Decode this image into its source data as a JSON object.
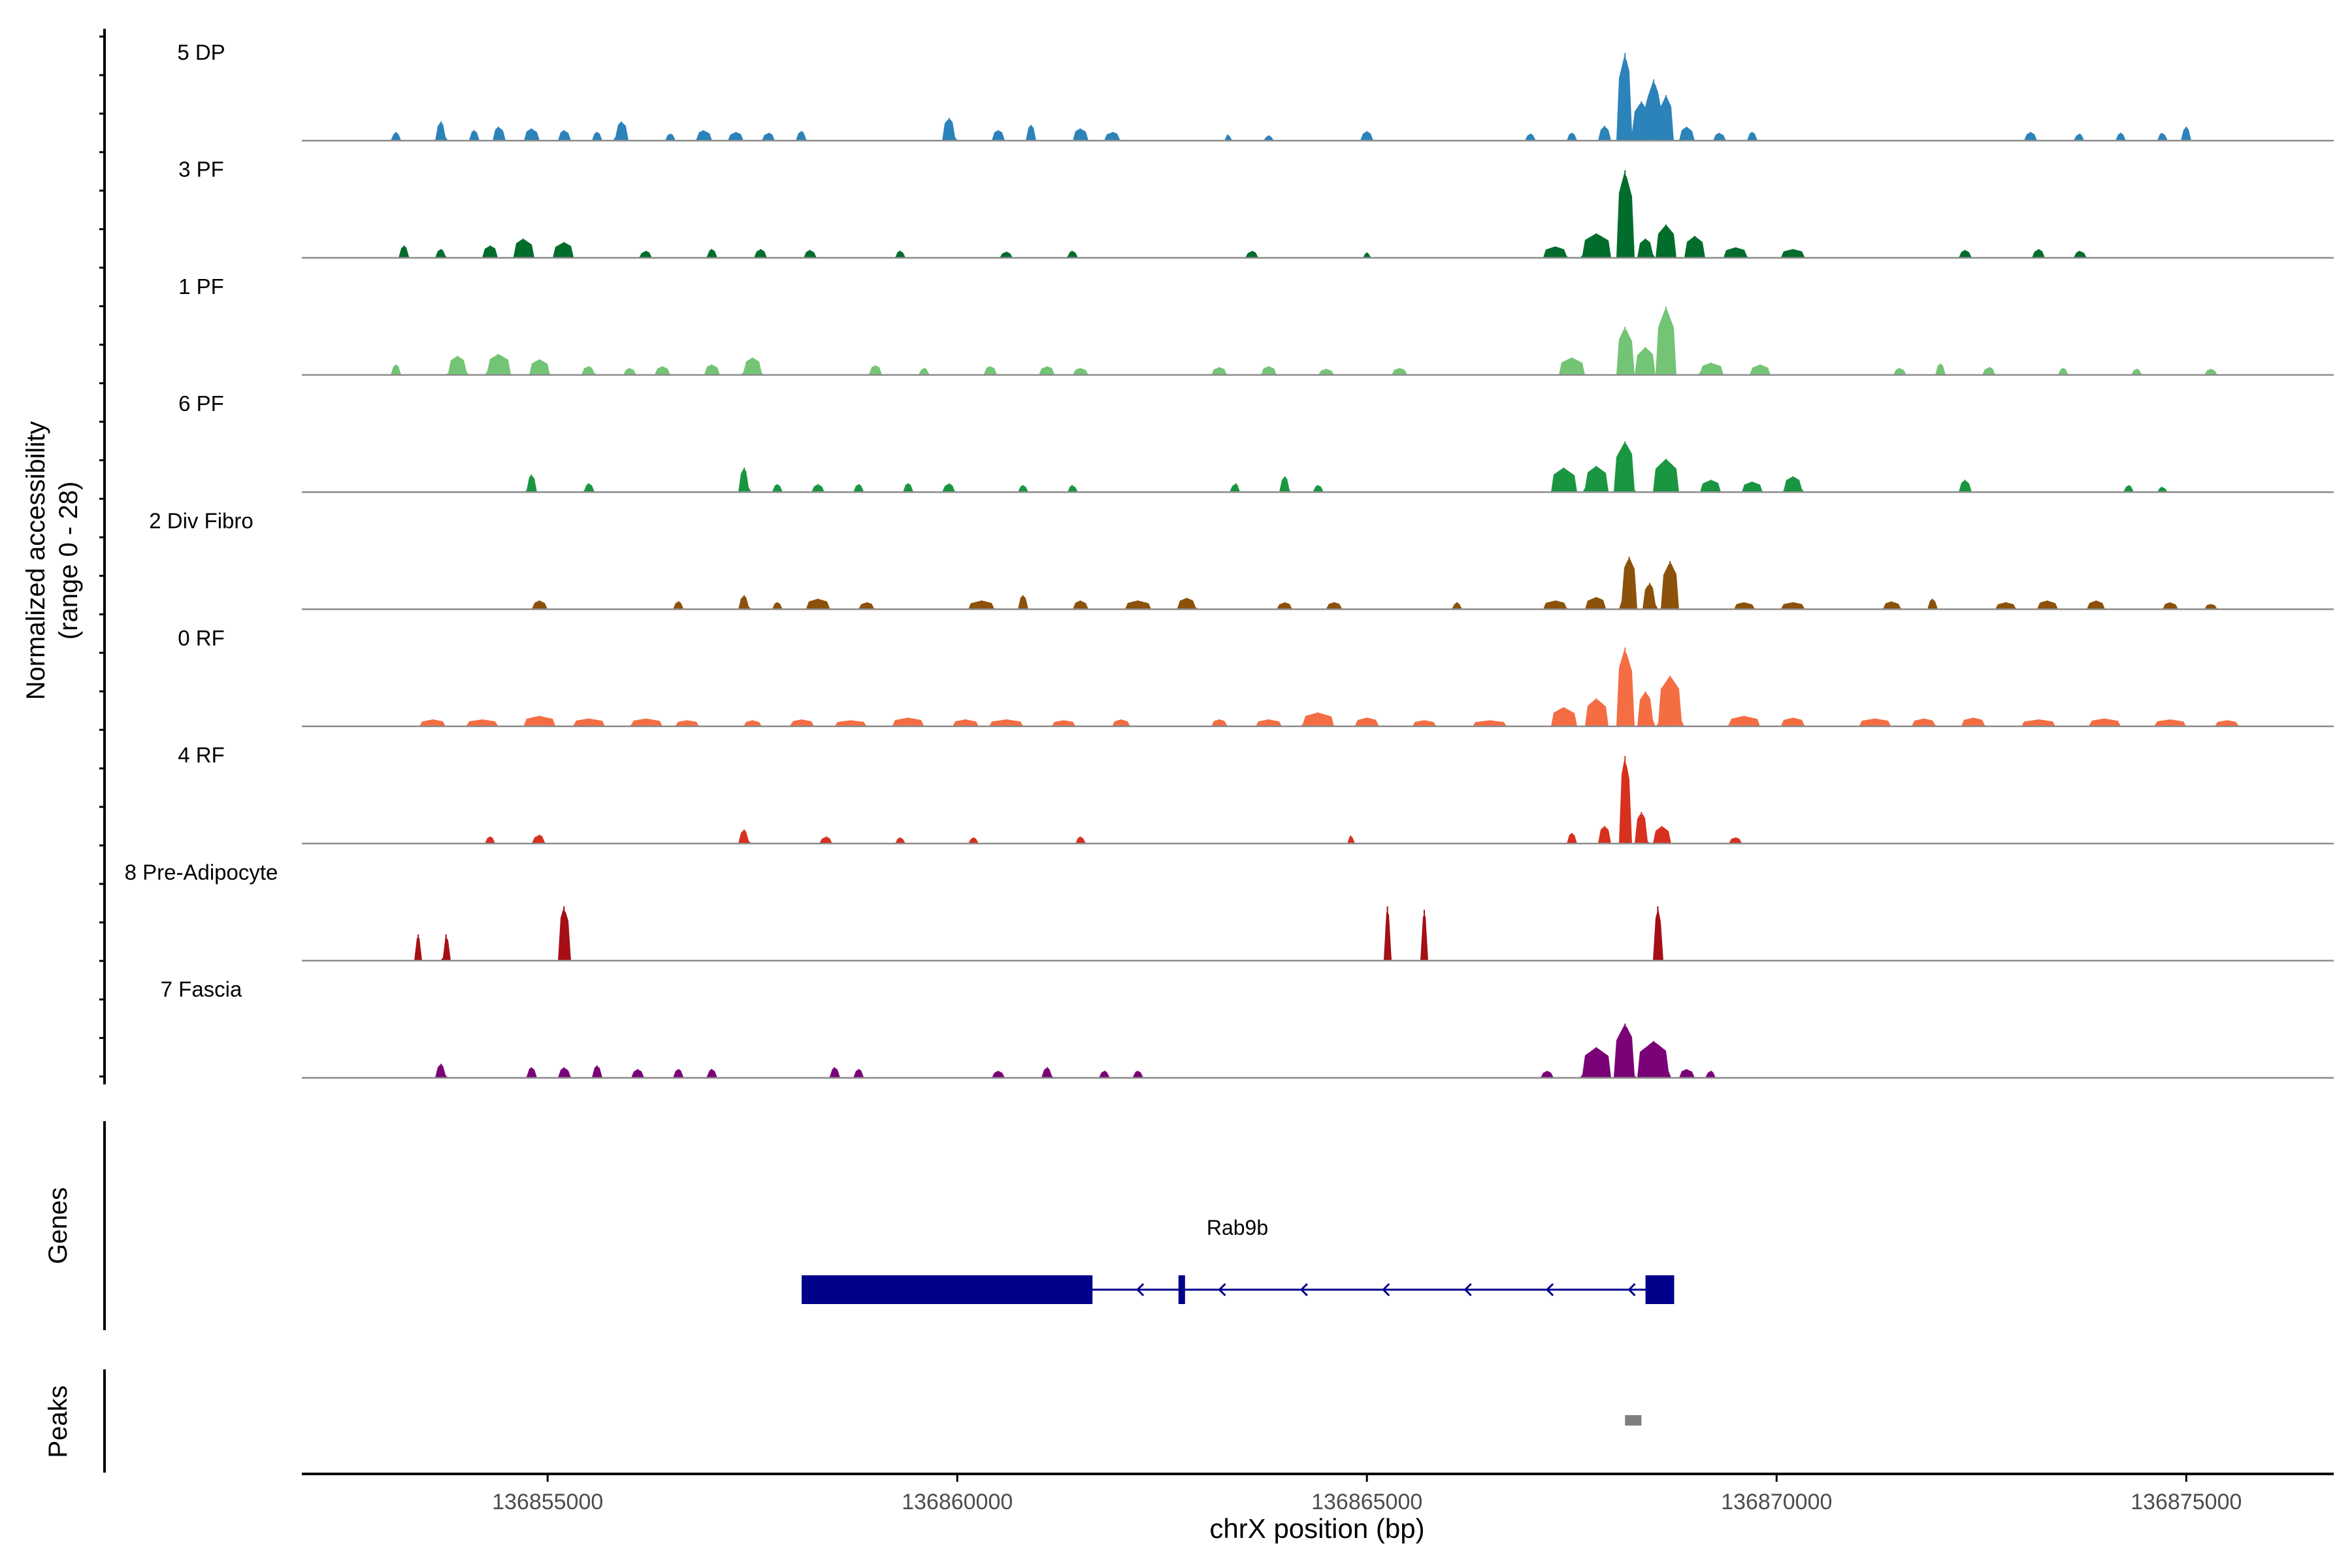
{
  "chart_data": {
    "type": "area",
    "title": "",
    "ylabel": "Normalized accessibility\n(range 0 - 28)",
    "ylabel_lines": [
      "Normalized accessibility",
      "(range 0 - 28)"
    ],
    "yrange": [
      0,
      28
    ],
    "xlabel": "chrX position (bp)",
    "xlim": [
      136852000,
      136876800
    ],
    "xticks": [
      136855000,
      136860000,
      136865000,
      136870000,
      136875000
    ],
    "xtick_labels": [
      "136855000",
      "136860000",
      "136865000",
      "136870000",
      "136875000"
    ],
    "tracks": [
      {
        "name": "5 DP",
        "color": "#2b83ba",
        "peaks": [
          [
            136853150,
            0.1,
            40
          ],
          [
            136853700,
            0.22,
            60
          ],
          [
            136854100,
            0.12,
            60
          ],
          [
            136854400,
            0.16,
            70
          ],
          [
            136854800,
            0.14,
            80
          ],
          [
            136855200,
            0.12,
            70
          ],
          [
            136855600,
            0.1,
            60
          ],
          [
            136855900,
            0.22,
            80
          ],
          [
            136856500,
            0.08,
            60
          ],
          [
            136856900,
            0.12,
            90
          ],
          [
            136857300,
            0.1,
            80
          ],
          [
            136857700,
            0.09,
            70
          ],
          [
            136858100,
            0.11,
            60
          ],
          [
            136859900,
            0.26,
            80
          ],
          [
            136860500,
            0.12,
            80
          ],
          [
            136860900,
            0.18,
            60
          ],
          [
            136861500,
            0.14,
            90
          ],
          [
            136861900,
            0.1,
            90
          ],
          [
            136863300,
            0.07,
            40
          ],
          [
            136863800,
            0.06,
            40
          ],
          [
            136865000,
            0.11,
            60
          ],
          [
            136867000,
            0.08,
            60
          ],
          [
            136867500,
            0.09,
            60
          ],
          [
            136867900,
            0.17,
            60
          ],
          [
            136868150,
            1.0,
            90
          ],
          [
            136868350,
            0.45,
            110
          ],
          [
            136868500,
            0.7,
            90
          ],
          [
            136868650,
            0.52,
            90
          ],
          [
            136868900,
            0.16,
            80
          ],
          [
            136869300,
            0.09,
            60
          ],
          [
            136869700,
            0.1,
            60
          ],
          [
            136873100,
            0.1,
            60
          ],
          [
            136873700,
            0.08,
            50
          ],
          [
            136874200,
            0.09,
            50
          ],
          [
            136874700,
            0.09,
            50
          ],
          [
            136875000,
            0.16,
            50
          ]
        ]
      },
      {
        "name": "3 PF",
        "color": "#006d2c",
        "peaks": [
          [
            136853250,
            0.14,
            60
          ],
          [
            136853700,
            0.1,
            60
          ],
          [
            136854300,
            0.14,
            90
          ],
          [
            136854700,
            0.22,
            120
          ],
          [
            136855200,
            0.18,
            120
          ],
          [
            136856200,
            0.08,
            60
          ],
          [
            136857000,
            0.1,
            60
          ],
          [
            136857600,
            0.1,
            60
          ],
          [
            136858200,
            0.09,
            60
          ],
          [
            136859300,
            0.08,
            60
          ],
          [
            136860600,
            0.07,
            60
          ],
          [
            136861400,
            0.08,
            60
          ],
          [
            136863600,
            0.08,
            60
          ],
          [
            136865000,
            0.06,
            50
          ],
          [
            136867300,
            0.13,
            150
          ],
          [
            136867800,
            0.28,
            180
          ],
          [
            136868150,
            1.0,
            100
          ],
          [
            136868400,
            0.22,
            100
          ],
          [
            136868650,
            0.38,
            120
          ],
          [
            136869000,
            0.25,
            120
          ],
          [
            136869500,
            0.12,
            150
          ],
          [
            136870200,
            0.1,
            150
          ],
          [
            136872300,
            0.09,
            60
          ],
          [
            136873200,
            0.1,
            60
          ],
          [
            136873700,
            0.08,
            60
          ]
        ]
      },
      {
        "name": "1 PF",
        "color": "#74c476",
        "peaks": [
          [
            136853150,
            0.12,
            60
          ],
          [
            136853900,
            0.22,
            120
          ],
          [
            136854400,
            0.24,
            150
          ],
          [
            136854900,
            0.18,
            120
          ],
          [
            136855500,
            0.1,
            80
          ],
          [
            136856000,
            0.08,
            60
          ],
          [
            136856400,
            0.1,
            80
          ],
          [
            136857000,
            0.12,
            90
          ],
          [
            136857500,
            0.2,
            120
          ],
          [
            136859000,
            0.11,
            80
          ],
          [
            136859600,
            0.08,
            60
          ],
          [
            136860400,
            0.1,
            80
          ],
          [
            136861100,
            0.1,
            90
          ],
          [
            136861500,
            0.08,
            80
          ],
          [
            136863200,
            0.09,
            80
          ],
          [
            136863800,
            0.1,
            90
          ],
          [
            136864500,
            0.07,
            80
          ],
          [
            136865400,
            0.08,
            80
          ],
          [
            136867500,
            0.2,
            150
          ],
          [
            136868150,
            0.55,
            100
          ],
          [
            136868400,
            0.32,
            120
          ],
          [
            136868650,
            0.78,
            110
          ],
          [
            136869200,
            0.14,
            150
          ],
          [
            136869800,
            0.12,
            110
          ],
          [
            136871500,
            0.08,
            60
          ],
          [
            136872000,
            0.13,
            60
          ],
          [
            136872600,
            0.09,
            70
          ],
          [
            136873500,
            0.08,
            60
          ],
          [
            136874400,
            0.07,
            60
          ],
          [
            136875300,
            0.07,
            60
          ]
        ]
      },
      {
        "name": "6 PF",
        "color": "#1a9641",
        "peaks": [
          [
            136854800,
            0.2,
            60
          ],
          [
            136855500,
            0.1,
            60
          ],
          [
            136857400,
            0.28,
            60
          ],
          [
            136857800,
            0.09,
            60
          ],
          [
            136858300,
            0.09,
            60
          ],
          [
            136858800,
            0.09,
            60
          ],
          [
            136859400,
            0.1,
            60
          ],
          [
            136859900,
            0.1,
            60
          ],
          [
            136860800,
            0.08,
            50
          ],
          [
            136861400,
            0.08,
            50
          ],
          [
            136863400,
            0.1,
            50
          ],
          [
            136864000,
            0.18,
            60
          ],
          [
            136864400,
            0.08,
            60
          ],
          [
            136867400,
            0.28,
            150
          ],
          [
            136867800,
            0.3,
            150
          ],
          [
            136868150,
            0.58,
            120
          ],
          [
            136868650,
            0.38,
            150
          ],
          [
            136869200,
            0.14,
            120
          ],
          [
            136869700,
            0.12,
            120
          ],
          [
            136870200,
            0.18,
            120
          ],
          [
            136872300,
            0.14,
            60
          ],
          [
            136874300,
            0.08,
            50
          ],
          [
            136874700,
            0.06,
            50
          ]
        ]
      },
      {
        "name": "2 Div Fibro",
        "color": "#8c510a",
        "peaks": [
          [
            136854900,
            0.1,
            80
          ],
          [
            136856600,
            0.09,
            60
          ],
          [
            136857400,
            0.16,
            60
          ],
          [
            136857800,
            0.08,
            60
          ],
          [
            136858300,
            0.12,
            150
          ],
          [
            136858900,
            0.08,
            90
          ],
          [
            136860300,
            0.1,
            150
          ],
          [
            136860800,
            0.16,
            60
          ],
          [
            136861500,
            0.1,
            80
          ],
          [
            136862200,
            0.1,
            150
          ],
          [
            136862800,
            0.13,
            120
          ],
          [
            136864000,
            0.08,
            80
          ],
          [
            136864600,
            0.08,
            100
          ],
          [
            136866100,
            0.08,
            40
          ],
          [
            136867300,
            0.1,
            150
          ],
          [
            136867800,
            0.14,
            120
          ],
          [
            136868200,
            0.6,
            100
          ],
          [
            136868450,
            0.3,
            80
          ],
          [
            136868700,
            0.55,
            100
          ],
          [
            136869600,
            0.08,
            120
          ],
          [
            136870200,
            0.08,
            150
          ],
          [
            136871400,
            0.09,
            100
          ],
          [
            136871900,
            0.12,
            50
          ],
          [
            136872800,
            0.08,
            120
          ],
          [
            136873300,
            0.1,
            120
          ],
          [
            136873900,
            0.1,
            100
          ],
          [
            136874800,
            0.08,
            80
          ],
          [
            136875300,
            0.06,
            80
          ]
        ]
      },
      {
        "name": "0 RF",
        "color": "#f46d43",
        "peaks": [
          [
            136853600,
            0.08,
            150
          ],
          [
            136854200,
            0.08,
            200
          ],
          [
            136854900,
            0.12,
            200
          ],
          [
            136855500,
            0.09,
            200
          ],
          [
            136856200,
            0.09,
            200
          ],
          [
            136856700,
            0.07,
            150
          ],
          [
            136857500,
            0.07,
            100
          ],
          [
            136858100,
            0.08,
            150
          ],
          [
            136858700,
            0.07,
            200
          ],
          [
            136859400,
            0.1,
            200
          ],
          [
            136860100,
            0.08,
            150
          ],
          [
            136860600,
            0.08,
            200
          ],
          [
            136861300,
            0.07,
            150
          ],
          [
            136862000,
            0.08,
            100
          ],
          [
            136863200,
            0.08,
            100
          ],
          [
            136863800,
            0.08,
            150
          ],
          [
            136864400,
            0.16,
            200
          ],
          [
            136865000,
            0.1,
            150
          ],
          [
            136865700,
            0.07,
            150
          ],
          [
            136866500,
            0.07,
            200
          ],
          [
            136867400,
            0.22,
            150
          ],
          [
            136867800,
            0.32,
            140
          ],
          [
            136868150,
            0.9,
            100
          ],
          [
            136868400,
            0.4,
            100
          ],
          [
            136868700,
            0.58,
            150
          ],
          [
            136869600,
            0.12,
            200
          ],
          [
            136870200,
            0.1,
            150
          ],
          [
            136871200,
            0.09,
            200
          ],
          [
            136871800,
            0.09,
            150
          ],
          [
            136872400,
            0.1,
            150
          ],
          [
            136873200,
            0.08,
            200
          ],
          [
            136874000,
            0.09,
            200
          ],
          [
            136874800,
            0.08,
            200
          ],
          [
            136875500,
            0.07,
            150
          ]
        ]
      },
      {
        "name": "4 RF",
        "color": "#d7301f",
        "peaks": [
          [
            136854300,
            0.08,
            60
          ],
          [
            136854900,
            0.1,
            70
          ],
          [
            136857400,
            0.16,
            60
          ],
          [
            136858400,
            0.08,
            60
          ],
          [
            136859300,
            0.07,
            50
          ],
          [
            136860200,
            0.07,
            50
          ],
          [
            136861500,
            0.08,
            50
          ],
          [
            136864800,
            0.09,
            40
          ],
          [
            136867500,
            0.12,
            60
          ],
          [
            136867900,
            0.2,
            80
          ],
          [
            136868150,
            1.0,
            70
          ],
          [
            136868350,
            0.36,
            80
          ],
          [
            136868600,
            0.2,
            100
          ],
          [
            136869500,
            0.07,
            80
          ]
        ]
      },
      {
        "name": "8 Pre-Adipocyte",
        "color": "#a50f15",
        "peaks": [
          [
            136853420,
            0.3,
            40
          ],
          [
            136853760,
            0.3,
            40
          ],
          [
            136855200,
            0.62,
            70
          ],
          [
            136865250,
            0.62,
            45
          ],
          [
            136865700,
            0.58,
            45
          ],
          [
            136868550,
            0.62,
            45
          ]
        ]
      },
      {
        "name": "7 Fascia",
        "color": "#7a0177",
        "peaks": [
          [
            136853700,
            0.16,
            60
          ],
          [
            136854800,
            0.12,
            60
          ],
          [
            136855200,
            0.12,
            60
          ],
          [
            136855600,
            0.14,
            60
          ],
          [
            136856100,
            0.1,
            60
          ],
          [
            136856600,
            0.1,
            60
          ],
          [
            136857000,
            0.1,
            60
          ],
          [
            136858500,
            0.12,
            60
          ],
          [
            136858800,
            0.1,
            60
          ],
          [
            136860500,
            0.08,
            60
          ],
          [
            136861100,
            0.12,
            60
          ],
          [
            136861800,
            0.08,
            60
          ],
          [
            136862200,
            0.08,
            60
          ],
          [
            136867200,
            0.08,
            60
          ],
          [
            136867800,
            0.35,
            180
          ],
          [
            136868150,
            0.62,
            120
          ],
          [
            136868500,
            0.42,
            200
          ],
          [
            136868900,
            0.1,
            80
          ],
          [
            136869200,
            0.08,
            50
          ]
        ]
      }
    ],
    "genes": {
      "panel_label": "Genes",
      "gene_name": "Rab9b",
      "strand": "-",
      "start": 136858100,
      "end": 136868750,
      "exons": [
        [
          136858100,
          136861650
        ],
        [
          136862700,
          136862780
        ],
        [
          136868400,
          136868750
        ]
      ],
      "arrows_at": [
        136862200,
        136863200,
        136864200,
        136865200,
        136866200,
        136867200,
        136868200
      ],
      "color": "#00008b"
    },
    "peaks_track": {
      "panel_label": "Peaks",
      "regions": [
        [
          136868150,
          136868350
        ]
      ],
      "color": "#7f7f7f"
    }
  }
}
